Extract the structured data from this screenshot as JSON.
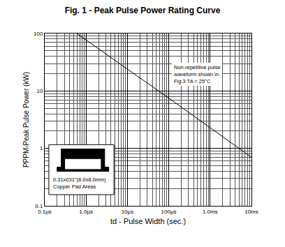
{
  "chart_data": {
    "type": "line",
    "title": "Fig. 1 - Peak Pulse Power Rating Curve",
    "x_label": "td - Pulse Width (sec.)",
    "y_label": "PPPM-Peak Pulse Power (kW)",
    "log": true,
    "grid": true,
    "x": [
      6e-07,
      1e-06,
      1e-05,
      0.0001,
      0.001,
      0.01
    ],
    "values": [
      100,
      77,
      24,
      7.5,
      2.3,
      0.7
    ],
    "color": "#000000",
    "xlim": [
      1e-07,
      0.01
    ],
    "ylim": [
      0.1,
      100
    ],
    "xticks": [
      {
        "value": 1e-07,
        "label": "0.1µs"
      },
      {
        "value": 1e-06,
        "label": "1.0µs"
      },
      {
        "value": 1e-05,
        "label": "10µs"
      },
      {
        "value": 0.0001,
        "label": "100µs"
      },
      {
        "value": 0.001,
        "label": "1.0ms"
      },
      {
        "value": 0.01,
        "label": "10ms"
      }
    ],
    "yticks": [
      0.1,
      1,
      10,
      100
    ],
    "annotations": [
      {
        "lines": [
          "Non-repetitive pulse",
          "waveform shown in",
          "Fig.3 TA = 25°C"
        ]
      },
      {
        "lines": [
          "0.31x031\"(8.0x8.0mm)",
          "Copper Pad Areas"
        ]
      }
    ]
  }
}
